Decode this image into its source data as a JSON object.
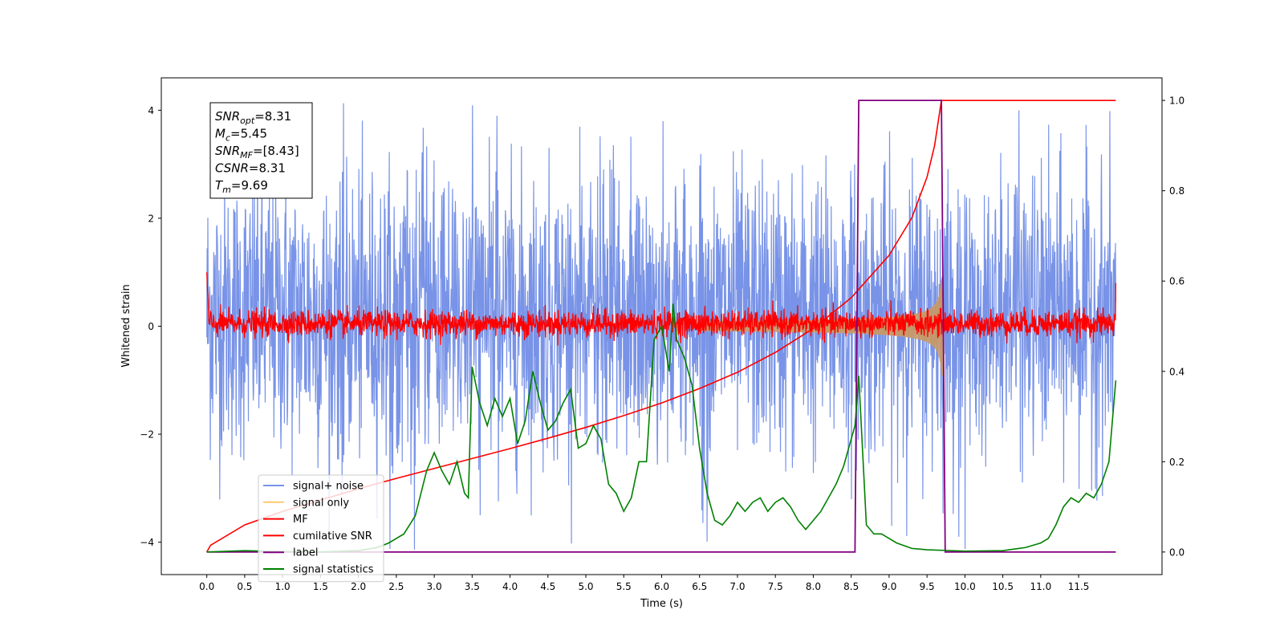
{
  "chart_data": {
    "type": "line",
    "xlabel": "Time (s)",
    "ylabel": "Whitened strain",
    "xlim": [
      -0.6,
      12.6
    ],
    "ylim": [
      -4.6,
      4.6
    ],
    "ylim_right": [
      -0.05,
      1.05
    ],
    "x_ticks": [
      0.0,
      0.5,
      1.0,
      1.5,
      2.0,
      2.5,
      3.0,
      3.5,
      4.0,
      4.5,
      5.0,
      5.5,
      6.0,
      6.5,
      7.0,
      7.5,
      8.0,
      8.5,
      9.0,
      9.5,
      10.0,
      10.5,
      11.0,
      11.5
    ],
    "x_tick_labels": [
      "0.0",
      "0.5",
      "1.0",
      "1.5",
      "2.0",
      "2.5",
      "3.0",
      "3.5",
      "4.0",
      "4.5",
      "5.0",
      "5.5",
      "6.0",
      "6.5",
      "7.0",
      "7.5",
      "8.0",
      "8.5",
      "9.0",
      "9.5",
      "10.0",
      "10.5",
      "11.0",
      "11.5"
    ],
    "y_ticks": [
      -4,
      -2,
      0,
      2,
      4
    ],
    "y_tick_labels": [
      "−4",
      "−2",
      "0",
      "2",
      "4"
    ],
    "y_right_ticks": [
      0.0,
      0.2,
      0.4,
      0.6,
      0.8,
      1.0
    ],
    "y_right_tick_labels": [
      "0.0",
      "0.2",
      "0.4",
      "0.6",
      "0.8",
      "1.0"
    ],
    "grid": false,
    "legend_position": "lower-left",
    "annotation": {
      "lines": [
        {
          "base": "SNR",
          "sub": "opt",
          "value": "=8.31"
        },
        {
          "base": "M",
          "sub": "c",
          "value": "=5.45"
        },
        {
          "base": "SNR",
          "sub": "MF",
          "value": "=[8.43]"
        },
        {
          "base": "CSNR",
          "sub": "",
          "value": "=8.31"
        },
        {
          "base": "T",
          "sub": "m",
          "value": "=9.69"
        }
      ]
    },
    "series": [
      {
        "name": "signal+ noise",
        "color": "#6d8ae5",
        "axis": "left",
        "style": "gaussian noise, envelope about ±2.8 with spikes to ±4",
        "x_range": [
          0.0,
          11.99
        ],
        "typical_amplitude": 1.3,
        "offset": 0.2,
        "max": 4.15,
        "min": -4.15
      },
      {
        "name": "signal only",
        "color": "#fdc96f",
        "axis": "left",
        "style": "chirp with growing amplitude, peak near 9.69 s",
        "x_range": [
          6.5,
          9.72
        ],
        "peak_amplitude": 0.9
      },
      {
        "name": "MF",
        "color": "#ff0000",
        "axis": "left",
        "style": "narrow noise band around zero",
        "x_range": [
          0.0,
          11.99
        ],
        "typical_amplitude": 0.12,
        "offset": 0.05,
        "start_value": 1.0,
        "end_value": 0.8
      },
      {
        "name": "cumilative SNR",
        "color": "#ff0000",
        "axis": "right",
        "x": [
          0.0,
          0.05,
          0.5,
          1.0,
          1.5,
          2.0,
          2.5,
          3.0,
          3.5,
          4.0,
          4.5,
          5.0,
          5.5,
          6.0,
          6.5,
          7.0,
          7.5,
          8.0,
          8.5,
          9.0,
          9.3,
          9.5,
          9.6,
          9.69,
          11.99
        ],
        "values": [
          0.0,
          0.015,
          0.06,
          0.09,
          0.115,
          0.14,
          0.163,
          0.185,
          0.207,
          0.229,
          0.252,
          0.276,
          0.302,
          0.33,
          0.362,
          0.398,
          0.442,
          0.495,
          0.563,
          0.657,
          0.74,
          0.83,
          0.9,
          1.0,
          1.0
        ]
      },
      {
        "name": "label",
        "color": "#800080",
        "axis": "right",
        "x": [
          0.0,
          8.55,
          8.6,
          9.69,
          9.74,
          11.99
        ],
        "values": [
          0.0,
          0.0,
          1.0,
          1.0,
          0.0,
          0.0
        ]
      },
      {
        "name": "signal statistics",
        "color": "#008000",
        "axis": "right",
        "x": [
          0.0,
          0.5,
          1.0,
          1.5,
          2.0,
          2.25,
          2.4,
          2.5,
          2.6,
          2.75,
          2.9,
          3.0,
          3.1,
          3.2,
          3.3,
          3.4,
          3.45,
          3.5,
          3.6,
          3.7,
          3.8,
          3.9,
          4.0,
          4.1,
          4.2,
          4.3,
          4.4,
          4.5,
          4.6,
          4.7,
          4.8,
          4.9,
          5.0,
          5.1,
          5.2,
          5.3,
          5.4,
          5.5,
          5.6,
          5.7,
          5.8,
          5.9,
          6.0,
          6.1,
          6.15,
          6.2,
          6.3,
          6.4,
          6.5,
          6.6,
          6.7,
          6.8,
          6.9,
          7.0,
          7.1,
          7.2,
          7.3,
          7.4,
          7.5,
          7.6,
          7.7,
          7.8,
          7.9,
          8.0,
          8.1,
          8.2,
          8.3,
          8.4,
          8.5,
          8.55,
          8.6,
          8.7,
          8.8,
          8.9,
          9.0,
          9.1,
          9.3,
          9.5,
          10.0,
          10.5,
          10.8,
          11.0,
          11.1,
          11.2,
          11.3,
          11.4,
          11.5,
          11.6,
          11.7,
          11.8,
          11.9,
          11.99
        ],
        "values": [
          0.0,
          0.003,
          0.001,
          0.0,
          0.003,
          0.01,
          0.02,
          0.03,
          0.04,
          0.08,
          0.18,
          0.22,
          0.18,
          0.15,
          0.2,
          0.13,
          0.12,
          0.41,
          0.33,
          0.28,
          0.34,
          0.3,
          0.34,
          0.24,
          0.29,
          0.4,
          0.33,
          0.27,
          0.29,
          0.33,
          0.36,
          0.23,
          0.24,
          0.28,
          0.25,
          0.15,
          0.13,
          0.09,
          0.12,
          0.2,
          0.2,
          0.47,
          0.5,
          0.4,
          0.55,
          0.47,
          0.43,
          0.37,
          0.23,
          0.13,
          0.07,
          0.06,
          0.08,
          0.11,
          0.09,
          0.11,
          0.12,
          0.09,
          0.11,
          0.12,
          0.1,
          0.07,
          0.05,
          0.07,
          0.09,
          0.12,
          0.15,
          0.19,
          0.25,
          0.28,
          0.39,
          0.06,
          0.04,
          0.04,
          0.03,
          0.02,
          0.008,
          0.005,
          0.002,
          0.003,
          0.01,
          0.02,
          0.03,
          0.06,
          0.1,
          0.12,
          0.11,
          0.13,
          0.12,
          0.15,
          0.2,
          0.38
        ]
      }
    ]
  }
}
